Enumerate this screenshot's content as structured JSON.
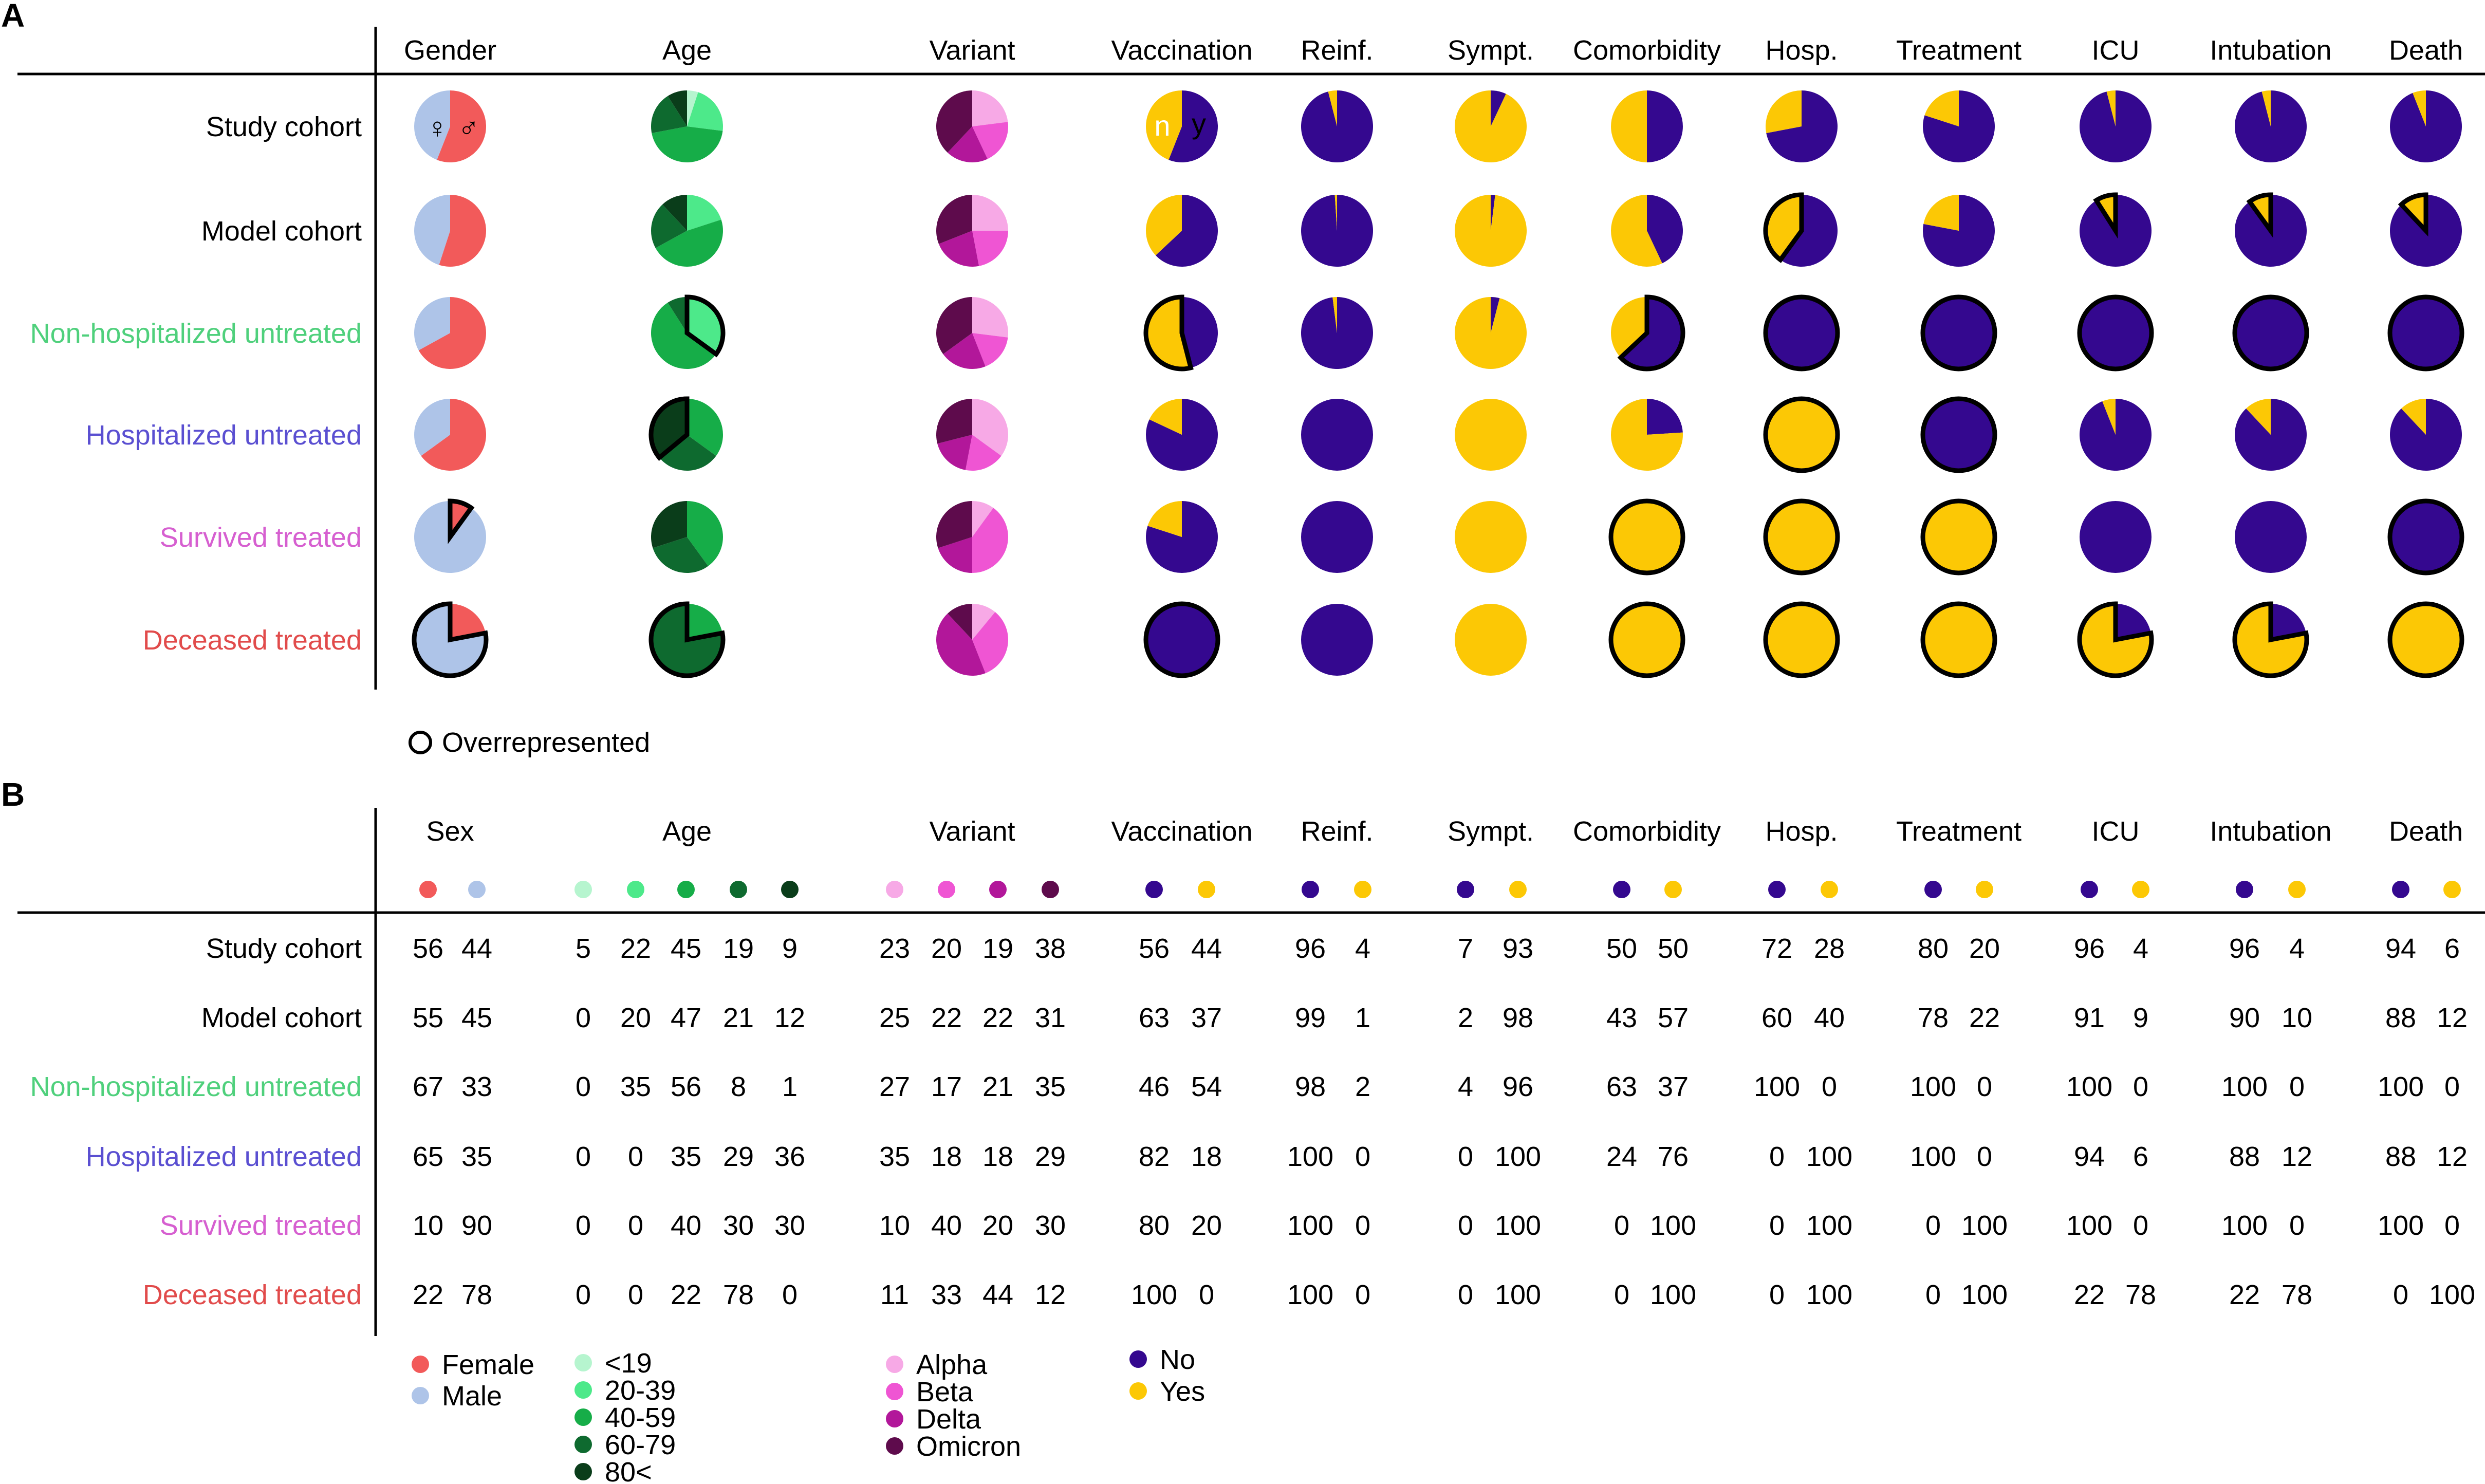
{
  "panels": {
    "a": "A",
    "b": "B"
  },
  "colors": {
    "female": "#f25a5a",
    "male": "#aec4e8",
    "age": [
      "#b6f5cf",
      "#4de98a",
      "#16ad48",
      "#0e6a2f",
      "#0a3d1a"
    ],
    "variant": [
      "#f7a9e6",
      "#ef55d3",
      "#b2179a",
      "#5e0b4c"
    ],
    "no": "#34088f",
    "yes": "#fcc805",
    "row_label": [
      "#000000",
      "#000000",
      "#4fd07c",
      "#5a4fd1",
      "#d65fd0",
      "#e14b4b"
    ]
  },
  "row_labels": [
    "Study cohort",
    "Model cohort",
    "Non-hospitalized untreated",
    "Hospitalized untreated",
    "Survived treated",
    "Deceased treated"
  ],
  "chart_data": [
    {
      "type": "pie",
      "panel": "A",
      "column_headers": [
        "Gender",
        "Age",
        "Variant",
        "Vaccination",
        "Reinf.",
        "Sympt.",
        "Comorbidity",
        "Hosp.",
        "Treatment",
        "ICU",
        "Intubation",
        "Death"
      ],
      "annotations": {
        "female_symbol": "♀",
        "male_symbol": "♂",
        "no": "n",
        "yes": "y"
      },
      "legend_overrepresented": "Overrepresented",
      "overrepresented": [
        [
          null,
          null,
          null,
          null,
          null,
          null,
          null,
          null,
          null,
          null,
          null,
          null
        ],
        [
          null,
          null,
          null,
          null,
          null,
          null,
          null,
          1,
          null,
          1,
          1,
          1
        ],
        [
          null,
          1,
          null,
          1,
          null,
          null,
          0,
          0,
          0,
          0,
          0,
          0
        ],
        [
          null,
          4,
          null,
          null,
          null,
          null,
          null,
          1,
          0,
          null,
          null,
          null
        ],
        [
          0,
          null,
          null,
          null,
          null,
          null,
          1,
          1,
          1,
          null,
          null,
          0
        ],
        [
          1,
          3,
          null,
          0,
          null,
          null,
          1,
          1,
          1,
          1,
          1,
          1
        ]
      ]
    },
    {
      "type": "table",
      "panel": "B",
      "column_headers": [
        "Sex",
        "Age",
        "Variant",
        "Vaccination",
        "Reinf.",
        "Sympt.",
        "Comorbidity",
        "Hosp.",
        "Treatment",
        "ICU",
        "Intubation",
        "Death"
      ],
      "rows": [
        [
          [
            56,
            44
          ],
          [
            5,
            22,
            45,
            19,
            9
          ],
          [
            23,
            20,
            19,
            38
          ],
          [
            56,
            44
          ],
          [
            96,
            4
          ],
          [
            7,
            93
          ],
          [
            50,
            50
          ],
          [
            72,
            28
          ],
          [
            80,
            20
          ],
          [
            96,
            4
          ],
          [
            96,
            4
          ],
          [
            94,
            6
          ]
        ],
        [
          [
            55,
            45
          ],
          [
            0,
            20,
            47,
            21,
            12
          ],
          [
            25,
            22,
            22,
            31
          ],
          [
            63,
            37
          ],
          [
            99,
            1
          ],
          [
            2,
            98
          ],
          [
            43,
            57
          ],
          [
            60,
            40
          ],
          [
            78,
            22
          ],
          [
            91,
            9
          ],
          [
            90,
            10
          ],
          [
            88,
            12
          ]
        ],
        [
          [
            67,
            33
          ],
          [
            0,
            35,
            56,
            8,
            1
          ],
          [
            27,
            17,
            21,
            35
          ],
          [
            46,
            54
          ],
          [
            98,
            2
          ],
          [
            4,
            96
          ],
          [
            63,
            37
          ],
          [
            100,
            0
          ],
          [
            100,
            0
          ],
          [
            100,
            0
          ],
          [
            100,
            0
          ],
          [
            100,
            0
          ]
        ],
        [
          [
            65,
            35
          ],
          [
            0,
            0,
            35,
            29,
            36
          ],
          [
            35,
            18,
            18,
            29
          ],
          [
            82,
            18
          ],
          [
            100,
            0
          ],
          [
            0,
            100
          ],
          [
            24,
            76
          ],
          [
            0,
            100
          ],
          [
            100,
            0
          ],
          [
            94,
            6
          ],
          [
            88,
            12
          ],
          [
            88,
            12
          ]
        ],
        [
          [
            10,
            90
          ],
          [
            0,
            0,
            40,
            30,
            30
          ],
          [
            10,
            40,
            20,
            30
          ],
          [
            80,
            20
          ],
          [
            100,
            0
          ],
          [
            0,
            100
          ],
          [
            0,
            100
          ],
          [
            0,
            100
          ],
          [
            0,
            100
          ],
          [
            100,
            0
          ],
          [
            100,
            0
          ],
          [
            100,
            0
          ]
        ],
        [
          [
            22,
            78
          ],
          [
            0,
            0,
            22,
            78,
            0
          ],
          [
            11,
            33,
            44,
            12
          ],
          [
            100,
            0
          ],
          [
            100,
            0
          ],
          [
            0,
            100
          ],
          [
            0,
            100
          ],
          [
            0,
            100
          ],
          [
            0,
            100
          ],
          [
            22,
            78
          ],
          [
            22,
            78
          ],
          [
            0,
            100
          ]
        ]
      ]
    }
  ],
  "legend": {
    "sex": [
      "Female",
      "Male"
    ],
    "age": [
      "<19",
      "20-39",
      "40-59",
      "60-79",
      "80<"
    ],
    "variant": [
      "Alpha",
      "Beta",
      "Delta",
      "Omicron"
    ],
    "binary": [
      "No",
      "Yes"
    ]
  }
}
